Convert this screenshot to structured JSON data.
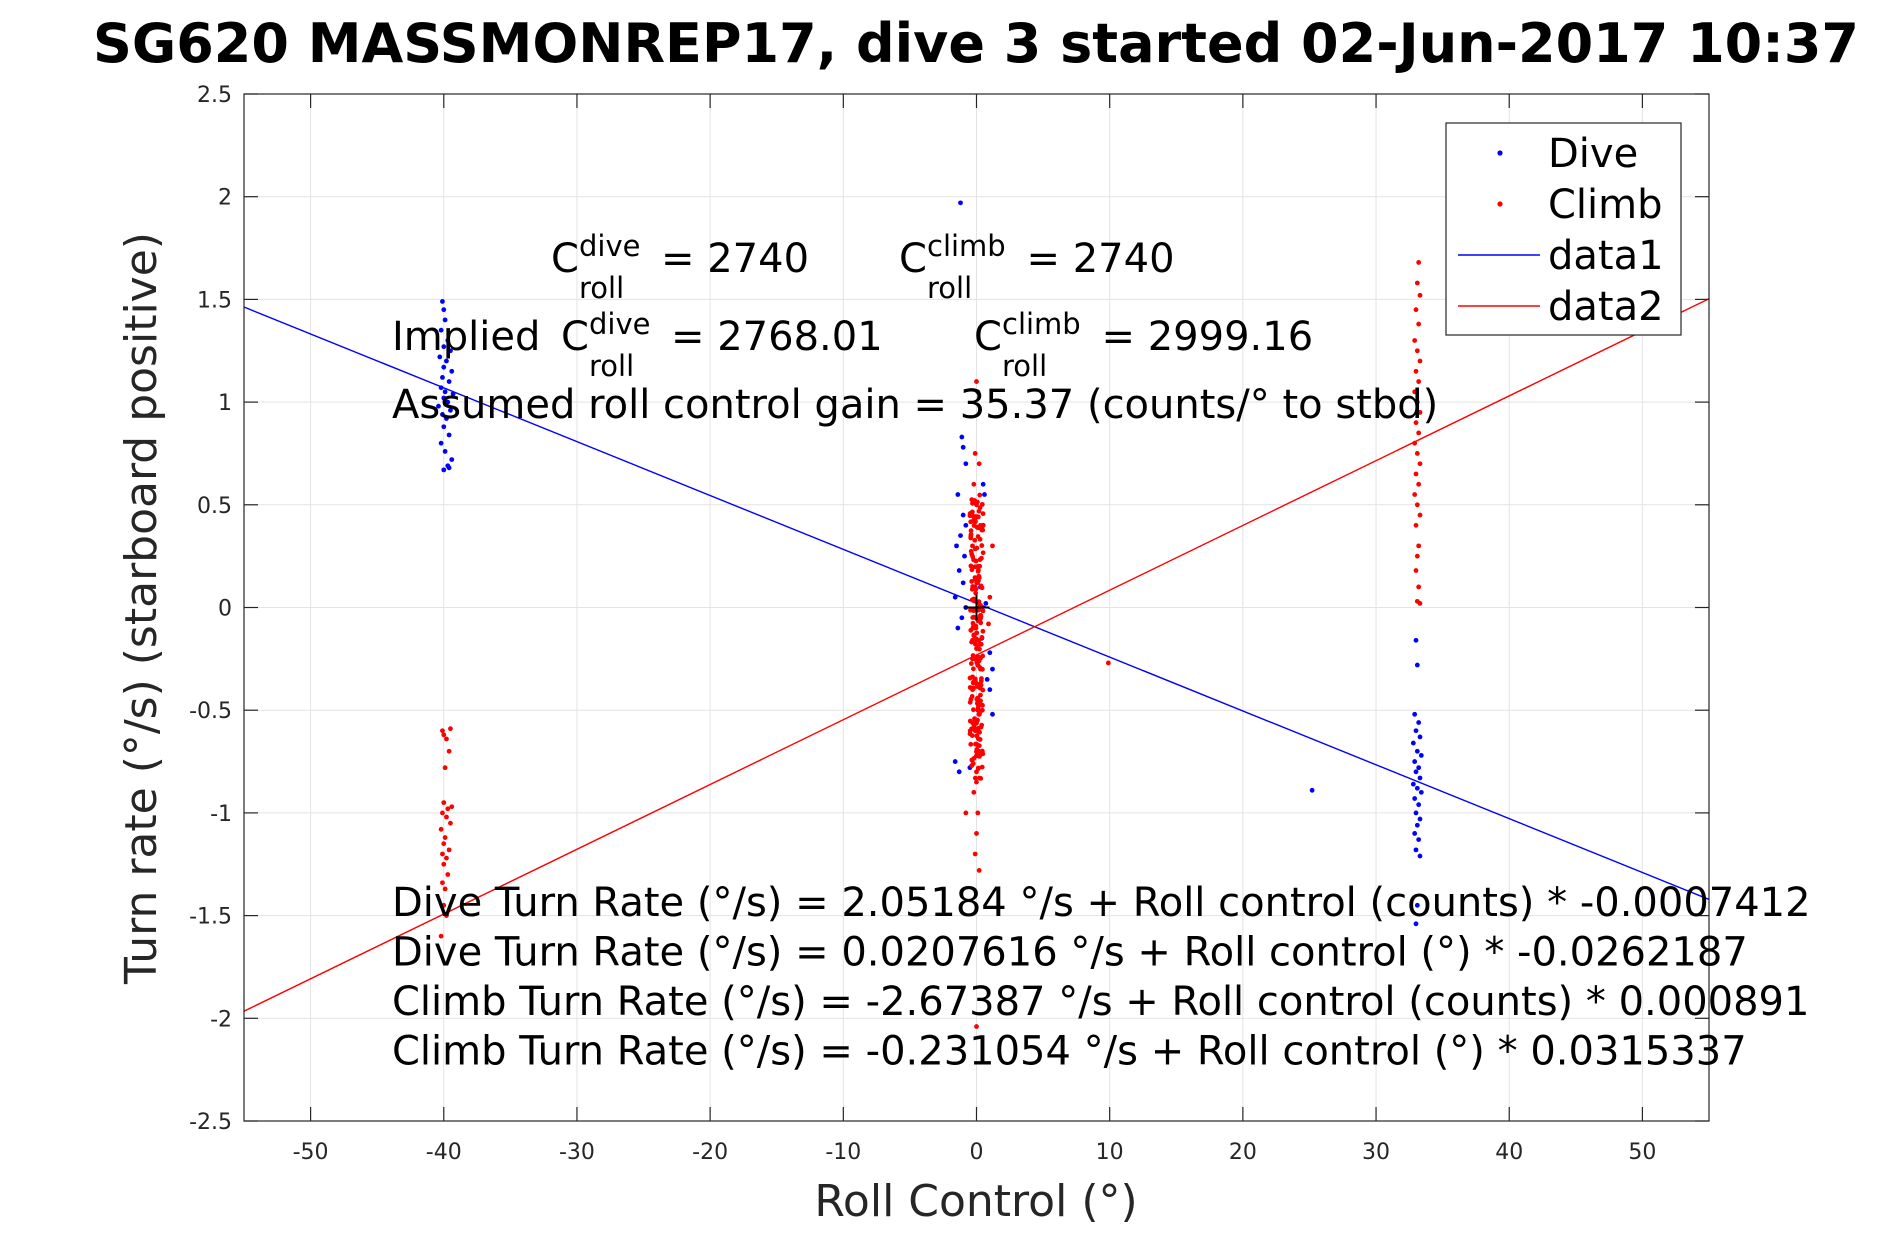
{
  "title": "SG620 MASSMONREP17, dive 3 started 02-Jun-2017 10:37",
  "chart_data": {
    "type": "scatter",
    "title": "SG620 MASSMONREP17, dive 3 started 02-Jun-2017 10:37",
    "xlabel": "Roll Control (°)",
    "ylabel": "Turn rate (°/s) (starboard positive)",
    "xlim": [
      -55,
      55
    ],
    "ylim": [
      -2.5,
      2.5
    ],
    "xticks": [
      -50,
      -40,
      -30,
      -20,
      -10,
      0,
      10,
      20,
      30,
      40,
      50
    ],
    "yticks": [
      -2.5,
      -2,
      -1.5,
      -1,
      -0.5,
      0,
      0.5,
      1,
      1.5,
      2,
      2.5
    ],
    "xtick_labels": [
      "-50",
      "-40",
      "-30",
      "-20",
      "-10",
      "0",
      "10",
      "20",
      "30",
      "40",
      "50"
    ],
    "ytick_labels": [
      "-2.5",
      "-2",
      "-1.5",
      "-1",
      "-0.5",
      "0",
      "0.5",
      "1",
      "1.5",
      "2",
      "2.5"
    ],
    "grid": true,
    "legend_position": "top-right",
    "legend": [
      "Dive",
      "Climb",
      "data1",
      "data2"
    ],
    "series": [
      {
        "name": "Dive",
        "kind": "points",
        "color": "#0000ff",
        "points": [
          [
            -40.1,
            1.49
          ],
          [
            -40.0,
            1.45
          ],
          [
            -39.9,
            1.4
          ],
          [
            -40.2,
            1.35
          ],
          [
            -39.7,
            1.3
          ],
          [
            -40.0,
            1.27
          ],
          [
            -39.5,
            1.25
          ],
          [
            -40.3,
            1.22
          ],
          [
            -39.8,
            1.2
          ],
          [
            -40.0,
            1.17
          ],
          [
            -39.4,
            1.15
          ],
          [
            -40.1,
            1.12
          ],
          [
            -39.6,
            1.1
          ],
          [
            -40.2,
            1.07
          ],
          [
            -39.9,
            1.05
          ],
          [
            -39.3,
            1.04
          ],
          [
            -40.0,
            1.02
          ],
          [
            -39.7,
            1.0
          ],
          [
            -40.4,
            0.98
          ],
          [
            -39.5,
            0.96
          ],
          [
            -40.1,
            0.94
          ],
          [
            -39.8,
            0.92
          ],
          [
            -40.0,
            0.88
          ],
          [
            -39.6,
            0.84
          ],
          [
            -40.2,
            0.8
          ],
          [
            -39.9,
            0.76
          ],
          [
            -39.4,
            0.72
          ],
          [
            -39.7,
            0.69
          ],
          [
            -40.0,
            0.67
          ],
          [
            -39.6,
            0.68
          ],
          [
            -1.2,
            1.97
          ],
          [
            -1.1,
            0.83
          ],
          [
            -1.0,
            0.78
          ],
          [
            -0.8,
            0.7
          ],
          [
            -1.4,
            0.55
          ],
          [
            -1.0,
            0.45
          ],
          [
            -0.8,
            0.4
          ],
          [
            -1.2,
            0.35
          ],
          [
            -1.5,
            0.3
          ],
          [
            -0.9,
            0.25
          ],
          [
            -1.3,
            0.18
          ],
          [
            -1.0,
            0.12
          ],
          [
            -1.6,
            0.05
          ],
          [
            -0.8,
            0.0
          ],
          [
            -1.1,
            -0.05
          ],
          [
            -1.4,
            -0.1
          ],
          [
            -1.6,
            -0.75
          ],
          [
            -1.3,
            -0.8
          ],
          [
            -0.5,
            -0.78
          ],
          [
            1.0,
            -0.22
          ],
          [
            1.2,
            -0.3
          ],
          [
            0.8,
            -0.35
          ],
          [
            1.0,
            -0.4
          ],
          [
            1.2,
            -0.52
          ],
          [
            0.6,
            0.55
          ],
          [
            0.5,
            0.4
          ],
          [
            0.3,
            0.1
          ],
          [
            0.4,
            -0.15
          ],
          [
            0.5,
            0.6
          ],
          [
            0.7,
            0.02
          ],
          [
            25.2,
            -0.89
          ],
          [
            33.0,
            -0.16
          ],
          [
            33.1,
            -0.28
          ],
          [
            32.9,
            -0.52
          ],
          [
            33.2,
            -0.56
          ],
          [
            33.0,
            -0.6
          ],
          [
            33.3,
            -0.63
          ],
          [
            32.8,
            -0.66
          ],
          [
            33.1,
            -0.7
          ],
          [
            33.4,
            -0.72
          ],
          [
            32.9,
            -0.75
          ],
          [
            33.2,
            -0.78
          ],
          [
            33.0,
            -0.8
          ],
          [
            33.3,
            -0.83
          ],
          [
            32.8,
            -0.86
          ],
          [
            33.1,
            -0.88
          ],
          [
            33.4,
            -0.9
          ],
          [
            32.9,
            -0.93
          ],
          [
            33.2,
            -0.96
          ],
          [
            33.0,
            -1.0
          ],
          [
            33.3,
            -1.03
          ],
          [
            33.1,
            -1.06
          ],
          [
            32.9,
            -1.1
          ],
          [
            33.2,
            -1.13
          ],
          [
            33.0,
            -1.18
          ],
          [
            33.3,
            -1.21
          ],
          [
            33.1,
            -1.45
          ],
          [
            33.0,
            -1.54
          ]
        ]
      },
      {
        "name": "Climb",
        "kind": "points",
        "color": "#ff0000",
        "points": [
          [
            -40.1,
            -0.6
          ],
          [
            -40.0,
            -0.62
          ],
          [
            -39.5,
            -0.59
          ],
          [
            -39.8,
            -0.64
          ],
          [
            -39.6,
            -0.7
          ],
          [
            -39.9,
            -0.78
          ],
          [
            -40.0,
            -0.95
          ],
          [
            -39.7,
            -0.98
          ],
          [
            -39.4,
            -0.97
          ],
          [
            -40.1,
            -1.0
          ],
          [
            -39.8,
            -1.02
          ],
          [
            -39.5,
            -1.05
          ],
          [
            -40.2,
            -1.08
          ],
          [
            -39.9,
            -1.12
          ],
          [
            -40.0,
            -1.15
          ],
          [
            -39.6,
            -1.18
          ],
          [
            -40.1,
            -1.2
          ],
          [
            -39.8,
            -1.22
          ],
          [
            -40.0,
            -1.25
          ],
          [
            -39.7,
            -1.3
          ],
          [
            -40.1,
            -1.34
          ],
          [
            -39.9,
            -1.37
          ],
          [
            -40.0,
            -1.45
          ],
          [
            -39.8,
            -1.5
          ],
          [
            -40.2,
            -1.6
          ],
          [
            0.0,
            1.1
          ],
          [
            0.1,
            1.05
          ],
          [
            -0.1,
            0.75
          ],
          [
            0.2,
            0.7
          ],
          [
            -0.2,
            0.6
          ],
          [
            0.0,
            0.5
          ],
          [
            0.3,
            0.4
          ],
          [
            -0.3,
            0.3
          ],
          [
            0.1,
            0.2
          ],
          [
            -0.1,
            0.1
          ],
          [
            0.2,
            0.0
          ],
          [
            -0.2,
            -0.1
          ],
          [
            0.0,
            -0.2
          ],
          [
            0.3,
            -0.3
          ],
          [
            -0.3,
            -0.4
          ],
          [
            0.1,
            -0.5
          ],
          [
            -0.1,
            -0.6
          ],
          [
            0.2,
            -0.7
          ],
          [
            0.0,
            -0.8
          ],
          [
            -0.2,
            -0.9
          ],
          [
            0.1,
            -1.0
          ],
          [
            0.0,
            -1.1
          ],
          [
            -0.1,
            -1.2
          ],
          [
            0.2,
            -1.28
          ],
          [
            0.0,
            -2.04
          ],
          [
            -0.8,
            -1.0
          ],
          [
            1.2,
            0.3
          ],
          [
            1.0,
            0.05
          ],
          [
            0.9,
            -0.08
          ],
          [
            9.9,
            -0.27
          ],
          [
            33.2,
            1.68
          ],
          [
            33.1,
            1.58
          ],
          [
            33.3,
            1.52
          ],
          [
            33.0,
            1.45
          ],
          [
            33.2,
            1.38
          ],
          [
            32.9,
            1.3
          ],
          [
            33.1,
            1.25
          ],
          [
            33.3,
            1.2
          ],
          [
            33.0,
            1.15
          ],
          [
            33.2,
            1.1
          ],
          [
            32.9,
            1.05
          ],
          [
            33.1,
            1.0
          ],
          [
            33.3,
            0.95
          ],
          [
            33.0,
            0.9
          ],
          [
            33.2,
            0.85
          ],
          [
            32.9,
            0.8
          ],
          [
            33.1,
            0.75
          ],
          [
            33.3,
            0.7
          ],
          [
            33.0,
            0.65
          ],
          [
            33.2,
            0.6
          ],
          [
            32.9,
            0.55
          ],
          [
            33.1,
            0.5
          ],
          [
            33.3,
            0.45
          ],
          [
            33.0,
            0.4
          ],
          [
            33.2,
            0.3
          ],
          [
            33.1,
            0.25
          ],
          [
            33.0,
            0.18
          ],
          [
            33.2,
            0.1
          ],
          [
            33.1,
            0.03
          ],
          [
            33.3,
            0.02
          ]
        ],
        "dense_columns": [
          {
            "x_center": 0.0,
            "x_spread": 0.5,
            "y_from": -0.85,
            "y_to": 0.55,
            "count": 220
          }
        ]
      },
      {
        "name": "data1",
        "kind": "line",
        "color": "#0000ff",
        "x": [
          -55,
          55
        ],
        "y": [
          1.4628,
          -1.4213
        ]
      },
      {
        "name": "data2",
        "kind": "line",
        "color": "#ff0000",
        "x": [
          -55,
          55
        ],
        "y": [
          -1.9654,
          1.5033
        ]
      }
    ],
    "center_marker": {
      "x": 0,
      "y": 0,
      "symbol": "+"
    },
    "annotations": {
      "c_dive": {
        "base": "C",
        "sup": "dive",
        "sub": "roll",
        "value": "= 2740"
      },
      "c_climb": {
        "base": "C",
        "sup": "climb",
        "sub": "roll",
        "value": "= 2740"
      },
      "implied_prefix": "Implied",
      "implied_dive": {
        "base": "C",
        "sup": "dive",
        "sub": "roll",
        "value": "= 2768.01"
      },
      "implied_climb": {
        "base": "C",
        "sup": "climb",
        "sub": "roll",
        "value": "= 2999.16"
      },
      "gain_line": "Assumed roll control gain = 35.37 (counts/° to stbd)",
      "fit_lines": [
        "Dive Turn Rate (°/s) = 2.05184 °/s + Roll control (counts) * -0.0007412",
        "Dive Turn Rate (°/s) = 0.0207616 °/s + Roll control (°) * -0.0262187",
        "Climb Turn Rate (°/s) = -2.67387 °/s + Roll control (counts) * 0.000891",
        "Climb Turn Rate (°/s) = -0.231054 °/s + Roll control (°) * 0.0315337"
      ]
    }
  }
}
